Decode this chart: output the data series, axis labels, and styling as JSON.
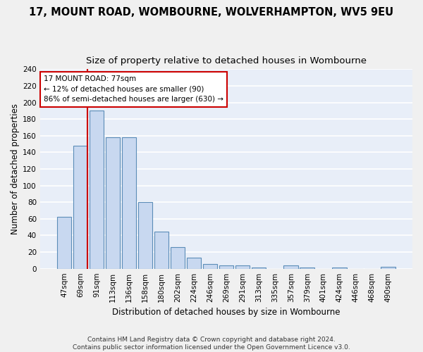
{
  "title1": "17, MOUNT ROAD, WOMBOURNE, WOLVERHAMPTON, WV5 9EU",
  "title2": "Size of property relative to detached houses in Wombourne",
  "xlabel": "Distribution of detached houses by size in Wombourne",
  "ylabel": "Number of detached properties",
  "categories": [
    "47sqm",
    "69sqm",
    "91sqm",
    "113sqm",
    "136sqm",
    "158sqm",
    "180sqm",
    "202sqm",
    "224sqm",
    "246sqm",
    "269sqm",
    "291sqm",
    "313sqm",
    "335sqm",
    "357sqm",
    "379sqm",
    "401sqm",
    "424sqm",
    "446sqm",
    "468sqm",
    "490sqm"
  ],
  "values": [
    62,
    148,
    190,
    158,
    158,
    80,
    45,
    26,
    13,
    6,
    4,
    4,
    1,
    0,
    4,
    1,
    0,
    1,
    0,
    0,
    2
  ],
  "bar_color": "#c8d8f0",
  "bar_edge_color": "#5b8db8",
  "background_color": "#e8eef8",
  "grid_color": "#ffffff",
  "red_line_x": 1.425,
  "annotation_text": "17 MOUNT ROAD: 77sqm\n← 12% of detached houses are smaller (90)\n86% of semi-detached houses are larger (630) →",
  "annotation_box_color": "#ffffff",
  "annotation_box_edge_color": "#cc0000",
  "footer": "Contains HM Land Registry data © Crown copyright and database right 2024.\nContains public sector information licensed under the Open Government Licence v3.0.",
  "ylim": [
    0,
    240
  ],
  "yticks": [
    0,
    20,
    40,
    60,
    80,
    100,
    120,
    140,
    160,
    180,
    200,
    220,
    240
  ],
  "title1_fontsize": 10.5,
  "title2_fontsize": 9.5,
  "xlabel_fontsize": 8.5,
  "ylabel_fontsize": 8.5,
  "tick_fontsize": 7.5,
  "footer_fontsize": 6.5,
  "annot_fontsize": 7.5
}
